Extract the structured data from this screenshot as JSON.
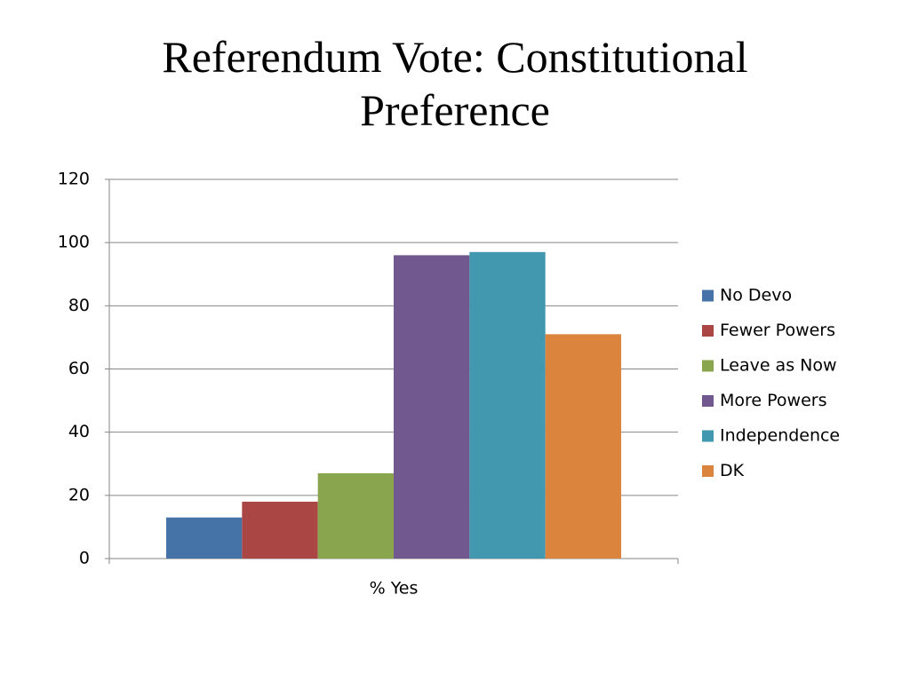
{
  "chart_data": {
    "type": "bar",
    "title": "Referendum Vote: Constitutional Preference",
    "categories": [
      "% Yes"
    ],
    "series": [
      {
        "name": "No Devo",
        "color": "#4572a7",
        "values": [
          13
        ]
      },
      {
        "name": "Fewer Powers",
        "color": "#aa4643",
        "values": [
          18
        ]
      },
      {
        "name": "Leave as Now",
        "color": "#89a54e",
        "values": [
          27
        ]
      },
      {
        "name": "More Powers",
        "color": "#71588f",
        "values": [
          96
        ]
      },
      {
        "name": "Independence",
        "color": "#4198af",
        "values": [
          97
        ]
      },
      {
        "name": "DK",
        "color": "#db843d",
        "values": [
          71
        ]
      }
    ],
    "ylim": [
      0,
      120
    ],
    "yticks": [
      0,
      20,
      40,
      60,
      80,
      100,
      120
    ],
    "grid": true,
    "legend": "right"
  }
}
